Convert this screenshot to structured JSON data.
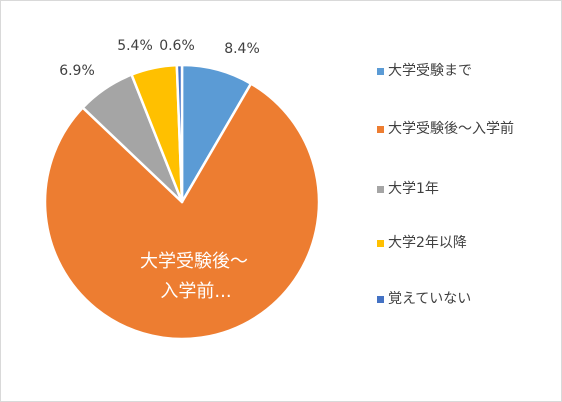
{
  "chart_data": {
    "type": "pie",
    "categories": [
      "大学受験まで",
      "大学受験後～入学前",
      "大学1年",
      "大学2年以降",
      "覚えていない"
    ],
    "values": [
      8.4,
      78.7,
      6.9,
      5.4,
      0.6
    ],
    "data_labels": [
      "8.4%",
      "",
      "6.9%",
      "5.4%",
      "0.6%"
    ],
    "inner_label": [
      "大学受験後～",
      "入学前..."
    ],
    "colors": [
      "#5b9bd5",
      "#ed7d31",
      "#a5a5a5",
      "#ffc000",
      "#4472c4"
    ],
    "legend_position": "right"
  }
}
